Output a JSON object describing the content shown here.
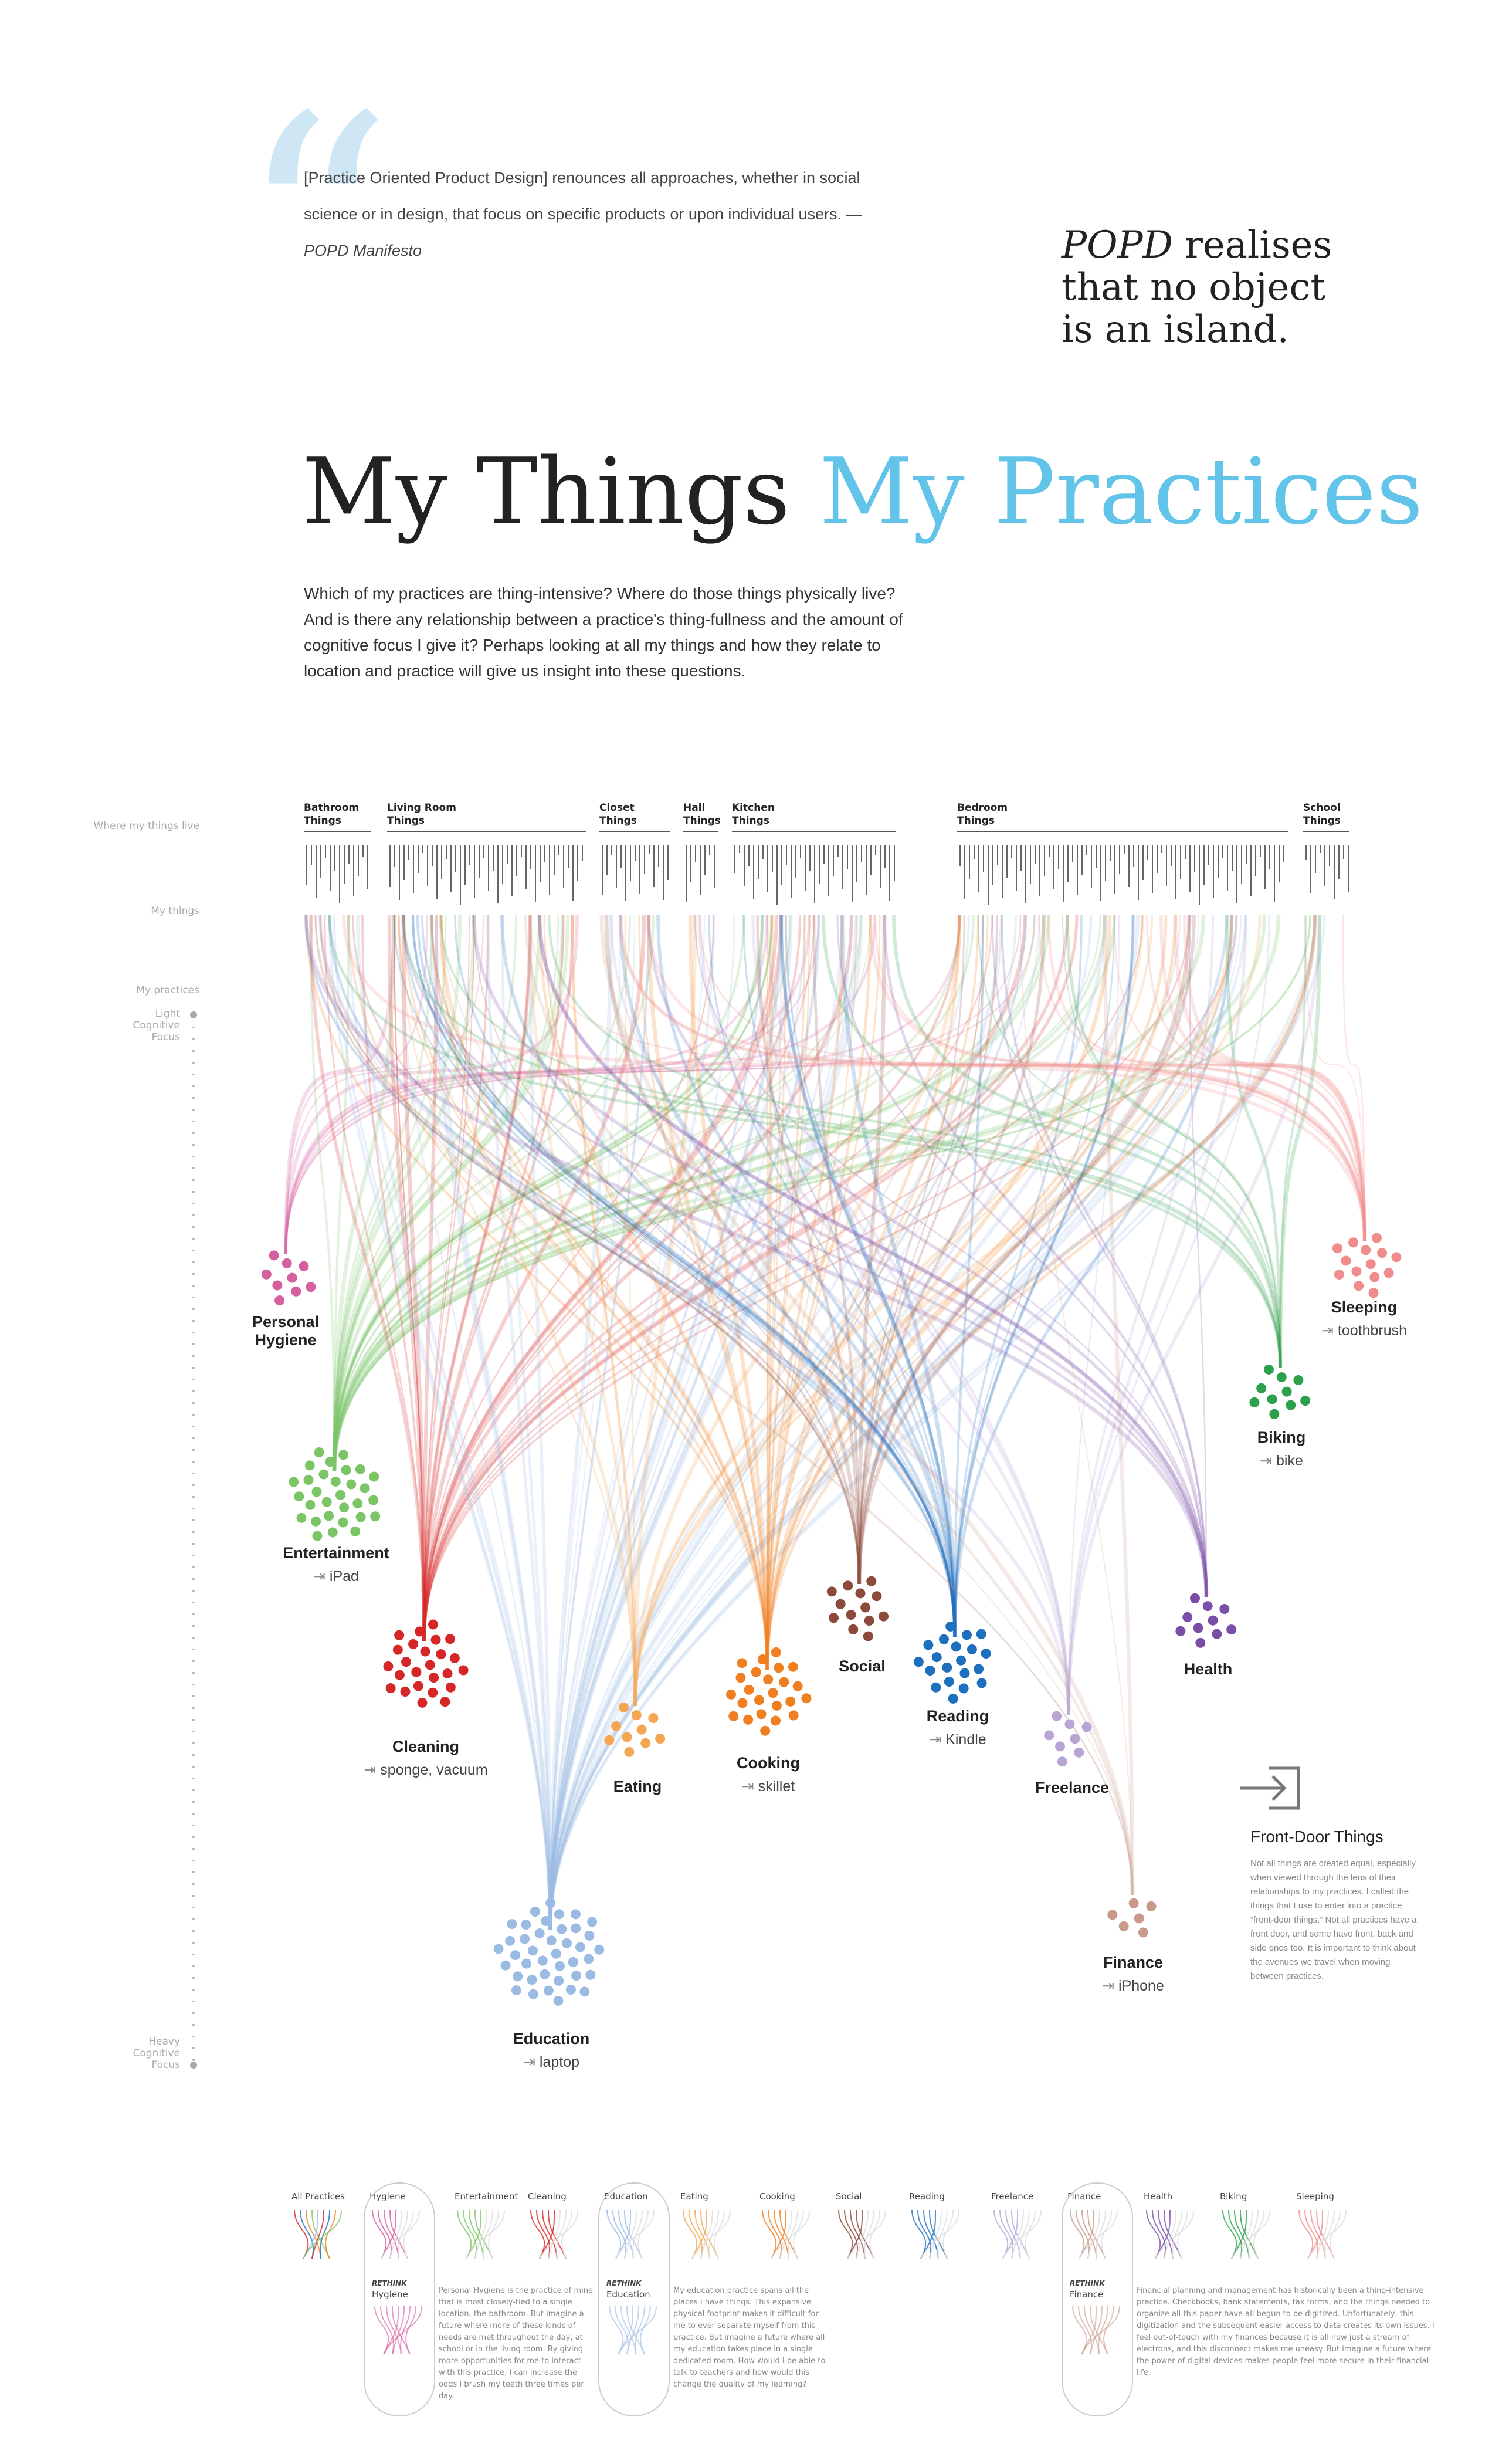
{
  "quote": {
    "mark": "“",
    "text": "[Practice Oriented Product Design] renounces all approaches, whether in social science or in design, that focus on specific products or upon individual users.",
    "attribution": "—POPD Manifesto"
  },
  "tagline": {
    "popd": "POPD",
    "rest_line1": " realises",
    "line2": "that no object",
    "line3": "is an island."
  },
  "title": {
    "part1": "My Things",
    "part2": "My Practices"
  },
  "intro": "Which of my practices are thing-intensive? Where do those things physically live? And is there any relationship between a practice's thing-fullness and the amount of cognitive focus I give it? Perhaps looking at all my things and how they relate to location and practice will give us insight into these questions.",
  "side_labels": {
    "where": "Where my things live",
    "things": "My things",
    "practices": "My practices",
    "light": "Light Cognitive Focus",
    "heavy": "Heavy Cognitive Focus"
  },
  "locations": [
    {
      "line1": "Bathroom",
      "line2": "Things"
    },
    {
      "line1": "Living Room",
      "line2": "Things"
    },
    {
      "line1": "Closet",
      "line2": "Things"
    },
    {
      "line1": "Hall",
      "line2": "Things"
    },
    {
      "line1": "Kitchen",
      "line2": "Things"
    },
    {
      "line1": "Bedroom",
      "line2": "Things"
    },
    {
      "line1": "School",
      "line2": "Things"
    }
  ],
  "practices": [
    {
      "id": "hygiene",
      "label": "Personal Hygiene",
      "label_line1": "Personal",
      "label_line2": "Hygiene",
      "front_door": "",
      "color": "#d65fa0"
    },
    {
      "id": "entertainment",
      "label": "Entertainment",
      "front_door": "iPad",
      "color": "#7cc567"
    },
    {
      "id": "cleaning",
      "label": "Cleaning",
      "front_door": "sponge, vacuum",
      "color": "#d62728"
    },
    {
      "id": "education",
      "label": "Education",
      "front_door": "laptop",
      "color": "#9bbbe3"
    },
    {
      "id": "eating",
      "label": "Eating",
      "front_door": "",
      "color": "#f5a652"
    },
    {
      "id": "cooking",
      "label": "Cooking",
      "front_door": "skillet",
      "color": "#f07f22"
    },
    {
      "id": "social",
      "label": "Social",
      "front_door": "",
      "color": "#8c4a3c"
    },
    {
      "id": "reading",
      "label": "Reading",
      "front_door": "Kindle",
      "color": "#1f6fbf"
    },
    {
      "id": "freelance",
      "label": "Freelance",
      "front_door": "",
      "color": "#b8a5d4"
    },
    {
      "id": "health",
      "label": "Health",
      "front_door": "",
      "color": "#7b4fa8"
    },
    {
      "id": "finance",
      "label": "Finance",
      "front_door": "iPhone",
      "color": "#c9998a"
    },
    {
      "id": "biking",
      "label": "Biking",
      "front_door": "bike",
      "color": "#2ca04a"
    },
    {
      "id": "sleeping",
      "label": "Sleeping",
      "front_door": "toothbrush",
      "color": "#f08c8c"
    }
  ],
  "front_door": {
    "title": "Front-Door Things",
    "body": "Not all things are created equal, especially when viewed through the lens of their relationships to my practices. I called the things that I use to enter into a practice “front-door things.” Not all practices have a front door, and some have front, back and side ones too. It is important to think about the avenues we travel when moving between practices."
  },
  "small_multiples": {
    "items": [
      "All Practices",
      "Hygiene",
      "Entertainment",
      "Cleaning",
      "Education",
      "Eating",
      "Cooking",
      "Social",
      "Reading",
      "Freelance",
      "Finance",
      "Health",
      "Biking",
      "Sleeping"
    ],
    "rethink_word": "RETHINK",
    "rethink": [
      {
        "name": "Hygiene",
        "text": "Personal Hygiene is the practice of mine that is most closely-tied to a single location, the bathroom. But imagine a future where more of these kinds of needs are met throughout the day, at school or in the living room. By giving more opportunities for me to interact with this practice, I can increase the odds I brush my teeth three times per day."
      },
      {
        "name": "Education",
        "text": "My education practice spans all the places I have things. This expansive physical footprint makes it difficult for me to ever separate myself from this practice. But imagine a future where all my education takes place in a single dedicated room. How would I be able to talk to teachers and how would this change the quality of my learning?"
      },
      {
        "name": "Finance",
        "text": "Financial planning and management has historically been a thing-intensive practice. Checkbooks, bank statements, tax forms, and the things needed to organize all this paper have all begun to be digitized. Unfortunately, this digitization and the subsequent easier access to data creates its own issues. I feel out-of-touch with my finances because it is all now just a stream of electrons, and this disconnect makes me uneasy. But imagine a future where the power of digital devices makes people feel more secure in their financial life."
      }
    ]
  }
}
